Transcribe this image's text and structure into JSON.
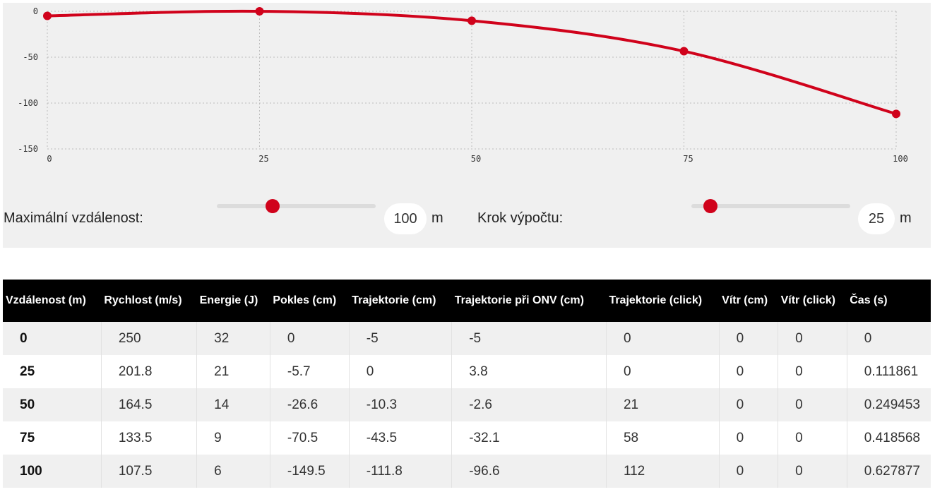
{
  "chart_data": {
    "type": "line",
    "x": [
      0,
      25,
      50,
      75,
      100
    ],
    "series": [
      {
        "values": [
          -5,
          0,
          -10.3,
          -43.5,
          -111.8
        ]
      }
    ],
    "xticks": [
      "0",
      "25",
      "50",
      "75",
      "100"
    ],
    "yticks": [
      "0",
      "-50",
      "-100",
      "-150"
    ],
    "xlim": [
      0,
      100
    ],
    "ylim": [
      -150,
      0
    ],
    "grid": true,
    "line_color": "#d0021b"
  },
  "controls": {
    "max_distance": {
      "label": "Maximální vzdálenost:",
      "value": "100",
      "unit": "m",
      "slider_fraction": 0.35
    },
    "step": {
      "label": "Krok výpočtu:",
      "value": "25",
      "unit": "m",
      "slider_fraction": 0.12
    }
  },
  "table": {
    "headers": [
      "Vzdálenost (m)",
      "Rychlost (m/s)",
      "Energie (J)",
      "Pokles (cm)",
      "Trajektorie (cm)",
      "Trajektorie při ONV (cm)",
      "Trajektorie (click)",
      "Vítr (cm)",
      "Vítr (click)",
      "Čas (s)"
    ],
    "rows": [
      [
        "0",
        "250",
        "32",
        "0",
        "-5",
        "-5",
        "0",
        "0",
        "0",
        "0"
      ],
      [
        "25",
        "201.8",
        "21",
        "-5.7",
        "0",
        "3.8",
        "0",
        "0",
        "0",
        "0.111861"
      ],
      [
        "50",
        "164.5",
        "14",
        "-26.6",
        "-10.3",
        "-2.6",
        "21",
        "0",
        "0",
        "0.249453"
      ],
      [
        "75",
        "133.5",
        "9",
        "-70.5",
        "-43.5",
        "-32.1",
        "58",
        "0",
        "0",
        "0.418568"
      ],
      [
        "100",
        "107.5",
        "6",
        "-149.5",
        "-111.8",
        "-96.6",
        "112",
        "0",
        "0",
        "0.627877"
      ]
    ]
  }
}
